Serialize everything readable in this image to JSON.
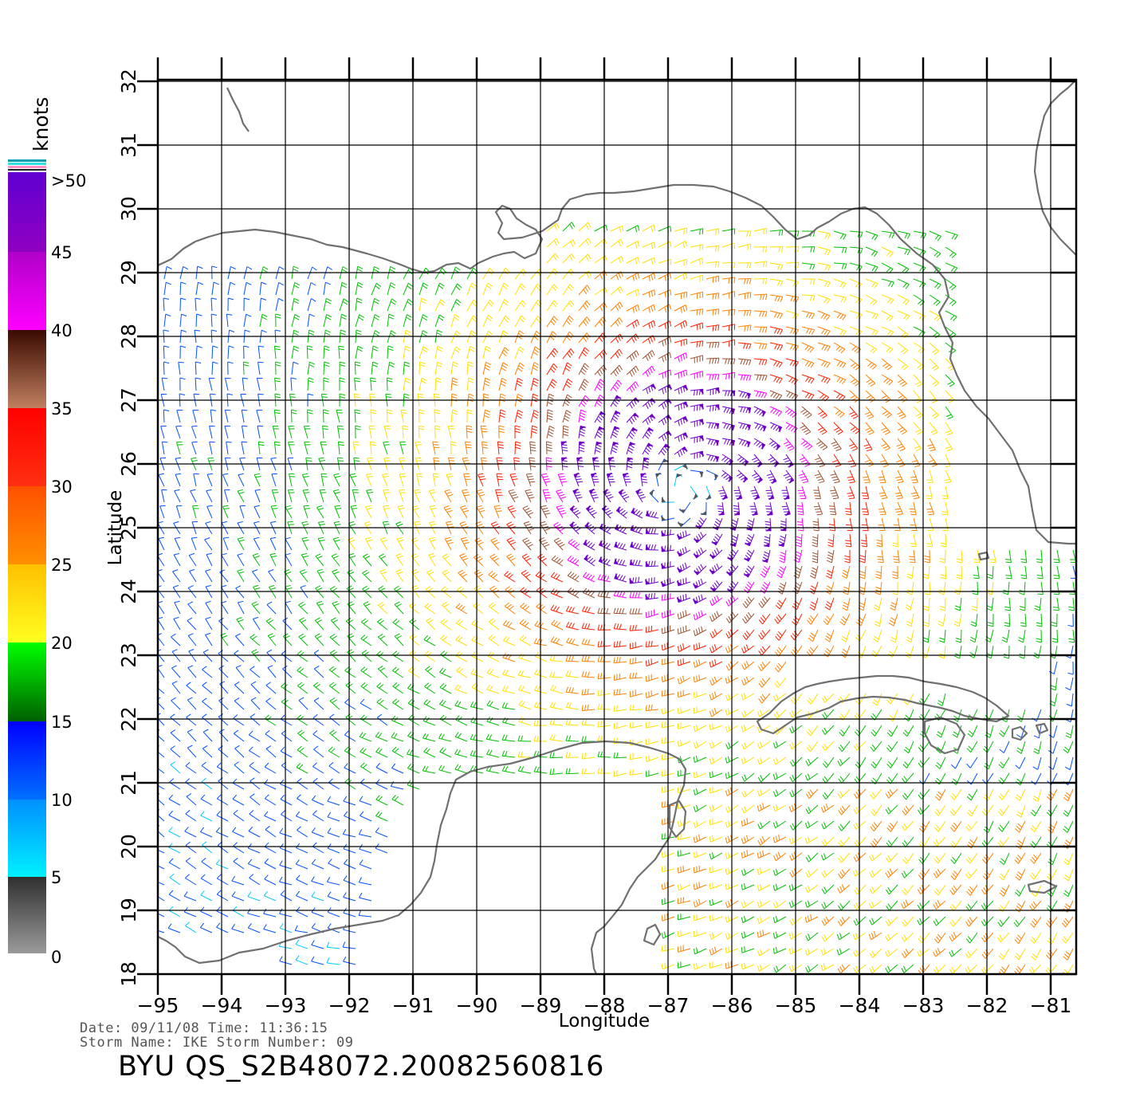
{
  "map": {
    "xlabel": "Longitude",
    "ylabel": "Latitude",
    "lon_range": [
      -95,
      -81
    ],
    "lat_range": [
      18,
      32
    ],
    "lon_ticks": [
      "−95",
      "−94",
      "−93",
      "−92",
      "−91",
      "−90",
      "−89",
      "−88",
      "−87",
      "−86",
      "−85",
      "−84",
      "−83",
      "−82",
      "−81"
    ],
    "lat_ticks": [
      "18",
      "19",
      "20",
      "21",
      "22",
      "23",
      "24",
      "25",
      "26",
      "27",
      "28",
      "29",
      "30",
      "31",
      "32"
    ],
    "storm_center_lon": -86.8,
    "storm_center_lat": 25.6,
    "coast_color": "#707070",
    "grid_color": "#000000"
  },
  "legend": {
    "unit": "knots",
    "labels": [
      "0",
      "5",
      "10",
      "15",
      "20",
      "25",
      "30",
      "35",
      "40",
      "45",
      ">50"
    ],
    "colors": {
      "0-5": "#555555",
      "5-10": "#00c8ff",
      "10-15": "#0050ff",
      "15-20": "#00c000",
      "20-25": "#ffe000",
      "25-30": "#ff8000",
      "30-35": "#ff2000",
      "35-40": "#a05030",
      "40-45": "#ff00ff",
      "45-50": "#7000c8"
    }
  },
  "info": {
    "date_line": "Date: 09/11/08  Time: 11:36:15",
    "storm_line": "Storm Name: IKE   Storm Number: 09",
    "product_id": "BYU QS_S2B48072.20082560816"
  }
}
